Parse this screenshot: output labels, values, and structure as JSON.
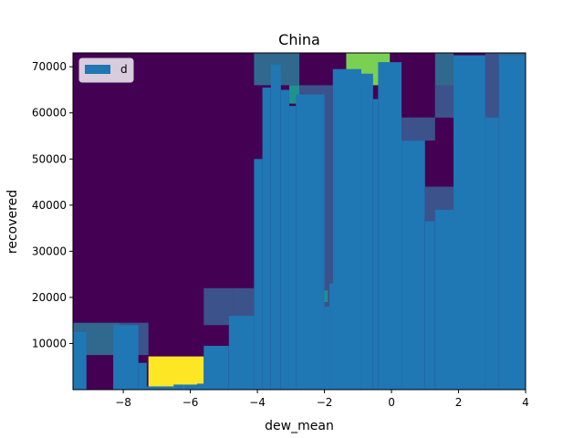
{
  "chart_data": {
    "type": "bar",
    "title": "China",
    "xlabel": "dew_mean",
    "ylabel": "recovered",
    "xlim": [
      -9.5,
      4.0
    ],
    "ylim": [
      0,
      73000
    ],
    "x_ticks": [
      -8,
      -6,
      -4,
      -2,
      0,
      2,
      4
    ],
    "x_tick_labels": [
      "−8",
      "−6",
      "−4",
      "−2",
      "0",
      "2",
      "4"
    ],
    "y_ticks": [
      10000,
      20000,
      30000,
      40000,
      50000,
      60000,
      70000
    ],
    "y_tick_labels": [
      "10000",
      "20000",
      "30000",
      "40000",
      "50000",
      "60000",
      "70000"
    ],
    "legend": {
      "entries": [
        "d"
      ],
      "placement": "upper left"
    },
    "bar_color": "#1f77b4",
    "background_heatmap": {
      "colormap": "viridis",
      "default_color": "#440154",
      "cells": [
        {
          "x0": -9.5,
          "x1": -8.1,
          "y0": 7500,
          "y1": 14500,
          "color": "#31688e"
        },
        {
          "x0": -8.1,
          "x1": -7.25,
          "y0": 7500,
          "y1": 14500,
          "color": "#3b528b"
        },
        {
          "x0": -7.25,
          "x1": -5.6,
          "y0": 0,
          "y1": 7200,
          "color": "#fde725"
        },
        {
          "x0": -5.6,
          "x1": -4.75,
          "y0": 14000,
          "y1": 22000,
          "color": "#3b528b"
        },
        {
          "x0": -4.75,
          "x1": -4.1,
          "y0": 14000,
          "y1": 22000,
          "color": "#3b528b"
        },
        {
          "x0": -4.1,
          "x1": -2.75,
          "y0": 66000,
          "y1": 73000,
          "color": "#31688e"
        },
        {
          "x0": -3.05,
          "x1": -2.75,
          "y0": 62000,
          "y1": 66000,
          "color": "#21918c"
        },
        {
          "x0": -2.75,
          "x1": -1.75,
          "y0": 18000,
          "y1": 66000,
          "color": "#3b528b"
        },
        {
          "x0": -1.75,
          "x1": -1.35,
          "y0": 18000,
          "y1": 66000,
          "color": "#3b528b"
        },
        {
          "x0": -2.05,
          "x1": -1.9,
          "y0": 19000,
          "y1": 21500,
          "color": "#21918c"
        },
        {
          "x0": -1.35,
          "x1": -0.05,
          "y0": 66000,
          "y1": 73000,
          "color": "#7ad151"
        },
        {
          "x0": 0.3,
          "x1": 1.3,
          "y0": 54000,
          "y1": 59000,
          "color": "#3b528b"
        },
        {
          "x0": 1.0,
          "x1": 1.85,
          "y0": 36500,
          "y1": 44000,
          "color": "#3b528b"
        },
        {
          "x0": 1.3,
          "x1": 1.85,
          "y0": 59000,
          "y1": 73000,
          "color": "#31688e"
        },
        {
          "x0": 1.3,
          "x1": 1.85,
          "y0": 59000,
          "y1": 66000,
          "color": "#3b528b"
        },
        {
          "x0": 2.8,
          "x1": 3.2,
          "y0": 58500,
          "y1": 73000,
          "color": "#3b528b"
        },
        {
          "x0": 3.2,
          "x1": 4.0,
          "y0": 70000,
          "y1": 73000,
          "color": "#31688e"
        }
      ]
    },
    "bars": [
      {
        "x0": -9.5,
        "x1": -9.1,
        "y": 12500
      },
      {
        "x0": -8.3,
        "x1": -7.55,
        "y": 14000
      },
      {
        "x0": -7.55,
        "x1": -7.3,
        "y": 5800
      },
      {
        "x0": -7.3,
        "x1": -6.5,
        "y": 700
      },
      {
        "x0": -6.5,
        "x1": -6.2,
        "y": 1100
      },
      {
        "x0": -6.2,
        "x1": -5.6,
        "y": 1100
      },
      {
        "x0": -5.8,
        "x1": -5.6,
        "y": 1300
      },
      {
        "x0": -5.6,
        "x1": -4.85,
        "y": 9500
      },
      {
        "x0": -4.85,
        "x1": -4.1,
        "y": 16000
      },
      {
        "x0": -4.1,
        "x1": -3.85,
        "y": 50000
      },
      {
        "x0": -3.85,
        "x1": -3.6,
        "y": 65500
      },
      {
        "x0": -3.6,
        "x1": -3.3,
        "y": 70500
      },
      {
        "x0": -3.3,
        "x1": -3.05,
        "y": 65000
      },
      {
        "x0": -3.05,
        "x1": -2.85,
        "y": 61500
      },
      {
        "x0": -2.85,
        "x1": -2.0,
        "y": 64000
      },
      {
        "x0": -2.0,
        "x1": -1.85,
        "y": 18000
      },
      {
        "x0": -1.85,
        "x1": -1.7,
        "y": 23000
      },
      {
        "x0": -1.75,
        "x1": -0.9,
        "y": 69500
      },
      {
        "x0": -0.9,
        "x1": -0.55,
        "y": 68500
      },
      {
        "x0": -0.55,
        "x1": -0.4,
        "y": 63000
      },
      {
        "x0": -0.4,
        "x1": 0.3,
        "y": 71000
      },
      {
        "x0": 0.3,
        "x1": 1.0,
        "y": 54000
      },
      {
        "x0": 1.0,
        "x1": 1.3,
        "y": 36500
      },
      {
        "x0": 1.3,
        "x1": 1.85,
        "y": 39000
      },
      {
        "x0": 1.85,
        "x1": 2.8,
        "y": 72500
      },
      {
        "x0": 2.8,
        "x1": 3.2,
        "y": 59000
      },
      {
        "x0": 3.2,
        "x1": 4.0,
        "y": 72500
      }
    ]
  }
}
